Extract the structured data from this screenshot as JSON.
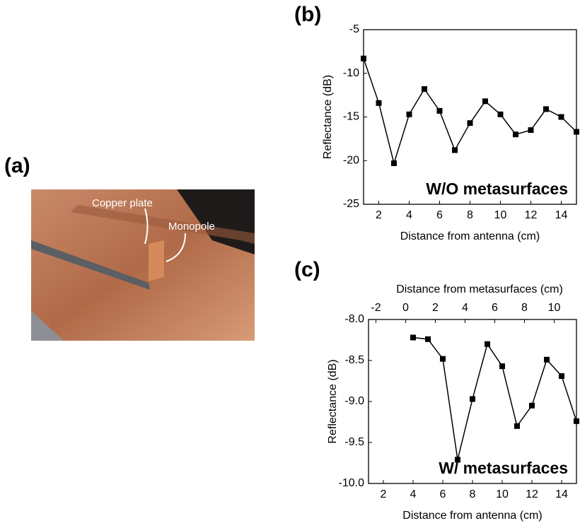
{
  "panels": [
    "(a)",
    "(b)",
    "(c)"
  ],
  "photo": {
    "labels": [
      "Copper plate",
      "Monopole"
    ]
  },
  "chart_data": [
    {
      "type": "line",
      "xlabel": "Distance from antenna (cm)",
      "ylabel": "Reflectance (dB)",
      "annotation": "W/O metasurfaces",
      "x": [
        1,
        2,
        3,
        4,
        5,
        6,
        7,
        8,
        9,
        10,
        11,
        12,
        13,
        14,
        15
      ],
      "series": [
        {
          "color": "#000000",
          "values": [
            -8.3,
            -13.4,
            -20.3,
            -14.7,
            -11.8,
            -14.3,
            -18.8,
            -15.7,
            -13.2,
            -14.7,
            -17.0,
            -16.5,
            -14.1,
            -15.0,
            -16.7
          ]
        }
      ],
      "xlim": [
        1,
        15
      ],
      "xticks": [
        2,
        4,
        6,
        8,
        10,
        12,
        14
      ],
      "ylim": [
        -25,
        -5
      ],
      "yticks": [
        -25,
        -20,
        -15,
        -10,
        -5
      ]
    },
    {
      "type": "line",
      "xlabel": "Distance from antenna (cm)",
      "ylabel": "Reflectance (dB)",
      "annotation": "W/ metasurfaces",
      "x2label": "Distance from metasurfaces (cm)",
      "x": [
        4,
        5,
        6,
        7,
        8,
        9,
        10,
        11,
        12,
        13,
        14,
        15
      ],
      "series": [
        {
          "color": "#000000",
          "values": [
            -8.22,
            -8.24,
            -8.48,
            -9.71,
            -8.97,
            -8.3,
            -8.57,
            -9.3,
            -9.05,
            -8.49,
            -8.69,
            -9.24
          ]
        }
      ],
      "xlim": [
        1,
        15
      ],
      "xticks": [
        2,
        4,
        6,
        8,
        10,
        12,
        14
      ],
      "x2lim": [
        -2.5,
        11.5
      ],
      "x2ticks": [
        -2,
        0,
        2,
        4,
        6,
        8,
        10
      ],
      "ylim": [
        -10,
        -8
      ],
      "yticks": [
        {
          "value": -10,
          "label": "-10.0"
        },
        {
          "value": -9.5,
          "label": "-9.5"
        },
        {
          "value": -9,
          "label": "-9.0"
        },
        -8.5,
        {
          "value": -8,
          "label": "-8.0"
        }
      ]
    }
  ]
}
